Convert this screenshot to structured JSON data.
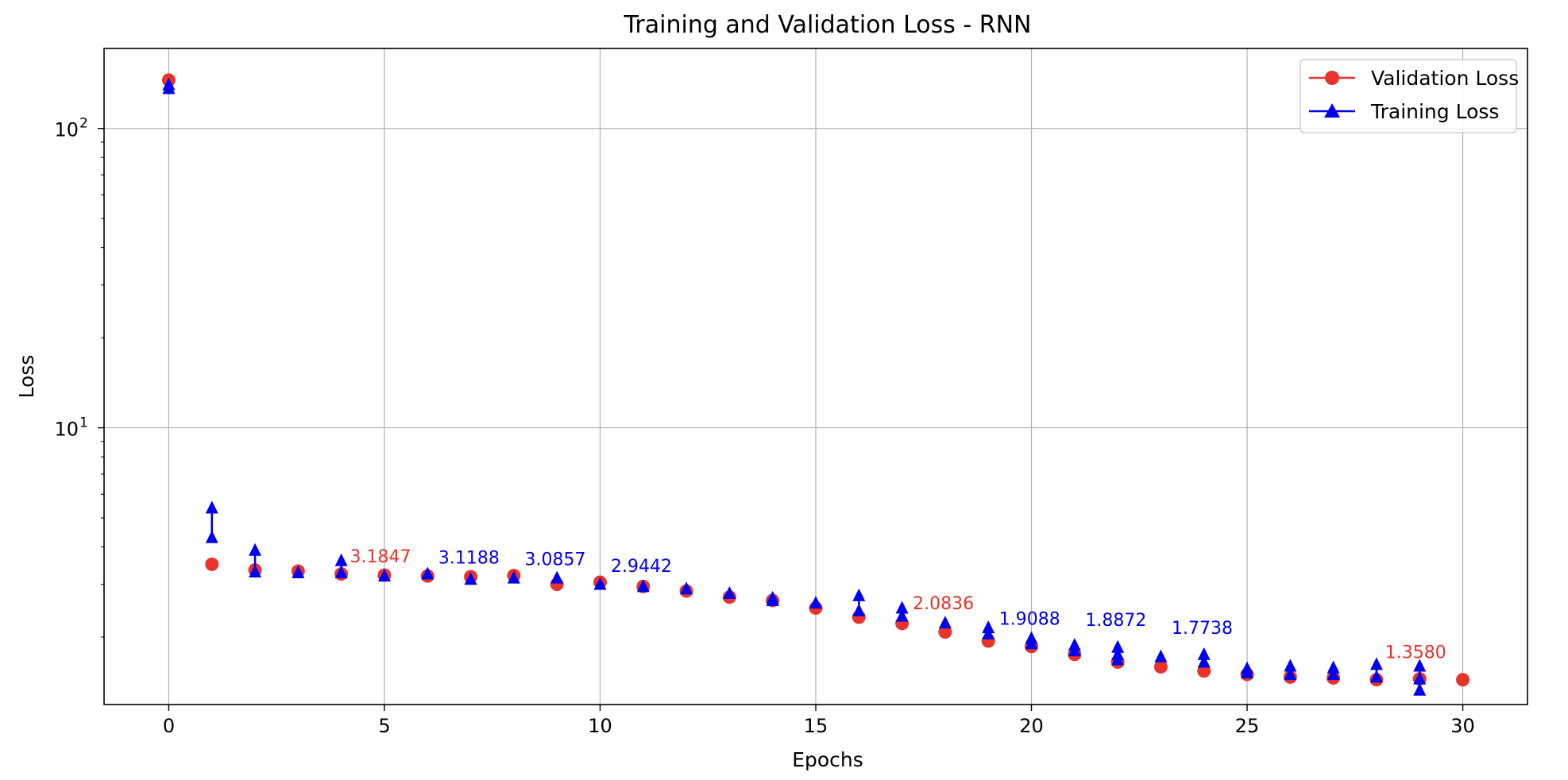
{
  "chart_data": {
    "type": "line",
    "title": "Training and Validation Loss - RNN",
    "xlabel": "Epochs",
    "ylabel": "Loss",
    "yscale": "log",
    "xlim": [
      -1.5,
      31.5
    ],
    "ylim": [
      1.19,
      185
    ],
    "grid": true,
    "legend_position": "top-right",
    "x_ticks": [
      0,
      5,
      10,
      15,
      20,
      25,
      30
    ],
    "y_ticks": [
      {
        "value": 10,
        "base": "10",
        "exponent": "1"
      },
      {
        "value": 100,
        "base": "10",
        "exponent": "2"
      }
    ],
    "series": [
      {
        "name": "Validation Loss",
        "color": "#e8322a",
        "marker": "circle",
        "points": [
          [
            0,
            145
          ],
          [
            1,
            3.5
          ],
          [
            2,
            3.35
          ],
          [
            3,
            3.32
          ],
          [
            4,
            3.25
          ],
          [
            5,
            3.22
          ],
          [
            6,
            3.2
          ],
          [
            7,
            3.18
          ],
          [
            8,
            3.21
          ],
          [
            9,
            3.0
          ],
          [
            10,
            3.05
          ],
          [
            11,
            2.95
          ],
          [
            12,
            2.85
          ],
          [
            13,
            2.72
          ],
          [
            14,
            2.65
          ],
          [
            15,
            2.5
          ],
          [
            16,
            2.33
          ],
          [
            17,
            2.22
          ],
          [
            18,
            2.08
          ],
          [
            19,
            1.94
          ],
          [
            20,
            1.86
          ],
          [
            21,
            1.75
          ],
          [
            22,
            1.65
          ],
          [
            23,
            1.59
          ],
          [
            24,
            1.54
          ],
          [
            25,
            1.5
          ],
          [
            26,
            1.47
          ],
          [
            27,
            1.46
          ],
          [
            28,
            1.44
          ],
          [
            29,
            1.45
          ],
          [
            30,
            1.44
          ]
        ]
      },
      {
        "name": "Training Loss",
        "color": "#0000ee",
        "marker": "triangle",
        "points": [
          [
            0,
            140
          ],
          [
            0,
            136
          ],
          [
            1,
            5.4
          ],
          [
            1,
            4.3
          ],
          [
            2,
            3.9
          ],
          [
            2,
            3.3
          ],
          [
            3,
            3.28
          ],
          [
            4,
            3.6
          ],
          [
            4,
            3.28
          ],
          [
            5,
            3.2
          ],
          [
            6,
            3.25
          ],
          [
            7,
            3.12
          ],
          [
            8,
            3.15
          ],
          [
            9,
            3.15
          ],
          [
            10,
            3.0
          ],
          [
            11,
            2.95
          ],
          [
            12,
            2.9
          ],
          [
            13,
            2.8
          ],
          [
            14,
            2.7
          ],
          [
            14,
            2.65
          ],
          [
            15,
            2.6
          ],
          [
            16,
            2.75
          ],
          [
            16,
            2.45
          ],
          [
            17,
            2.5
          ],
          [
            17,
            2.35
          ],
          [
            18,
            2.23
          ],
          [
            19,
            2.15
          ],
          [
            19,
            2.05
          ],
          [
            20,
            1.98
          ],
          [
            20,
            1.9
          ],
          [
            21,
            1.88
          ],
          [
            21,
            1.8
          ],
          [
            22,
            1.85
          ],
          [
            22,
            1.75
          ],
          [
            22,
            1.68
          ],
          [
            23,
            1.72
          ],
          [
            24,
            1.75
          ],
          [
            24,
            1.65
          ],
          [
            25,
            1.57
          ],
          [
            25,
            1.52
          ],
          [
            26,
            1.6
          ],
          [
            26,
            1.5
          ],
          [
            27,
            1.58
          ],
          [
            27,
            1.5
          ],
          [
            28,
            1.62
          ],
          [
            28,
            1.47
          ],
          [
            29,
            1.6
          ],
          [
            29,
            1.45
          ],
          [
            29,
            1.33
          ]
        ]
      }
    ],
    "annotations": [
      {
        "text": "3.1847",
        "x": 4.2,
        "y": 3.55,
        "color": "#e8322a"
      },
      {
        "text": "3.1188",
        "x": 6.25,
        "y": 3.52,
        "color": "#0000ee"
      },
      {
        "text": "3.0857",
        "x": 8.25,
        "y": 3.48,
        "color": "#0000ee"
      },
      {
        "text": "2.9442",
        "x": 10.25,
        "y": 3.3,
        "color": "#0000ee"
      },
      {
        "text": "2.0836",
        "x": 17.25,
        "y": 2.48,
        "color": "#e8322a"
      },
      {
        "text": "1.9088",
        "x": 19.25,
        "y": 2.2,
        "color": "#0000ee"
      },
      {
        "text": "1.8872",
        "x": 21.25,
        "y": 2.18,
        "color": "#0000ee"
      },
      {
        "text": "1.7738",
        "x": 23.25,
        "y": 2.05,
        "color": "#0000ee"
      },
      {
        "text": "1.3580",
        "x": 28.2,
        "y": 1.7,
        "color": "#e8322a"
      }
    ]
  }
}
